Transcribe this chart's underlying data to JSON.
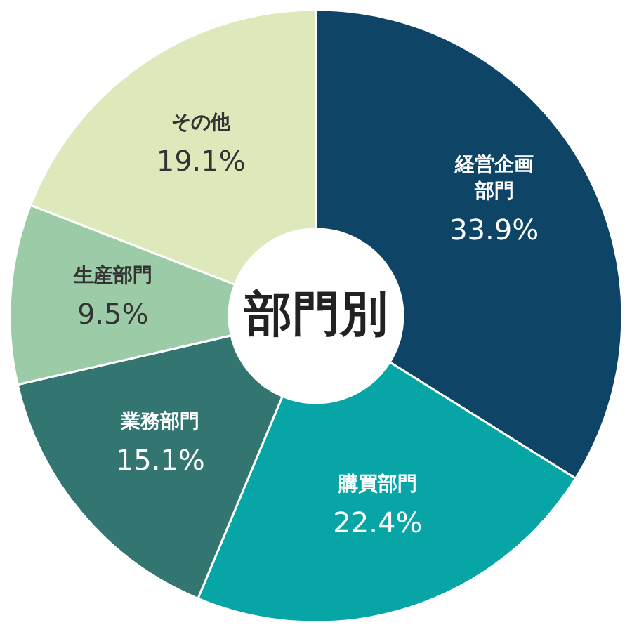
{
  "chart_data": {
    "type": "donut",
    "title": "部門別",
    "categories": [
      "経営企画部門",
      "購買部門",
      "業務部門",
      "生産部門",
      "その他"
    ],
    "values": [
      33.9,
      22.4,
      15.1,
      9.5,
      19.1
    ],
    "colors": [
      "#0e4466",
      "#07a5a5",
      "#337570",
      "#9ccba8",
      "#dde9bb"
    ],
    "value_labels": [
      "33.9%",
      "22.4%",
      "15.1%",
      "9.5%",
      "19.1%"
    ]
  }
}
